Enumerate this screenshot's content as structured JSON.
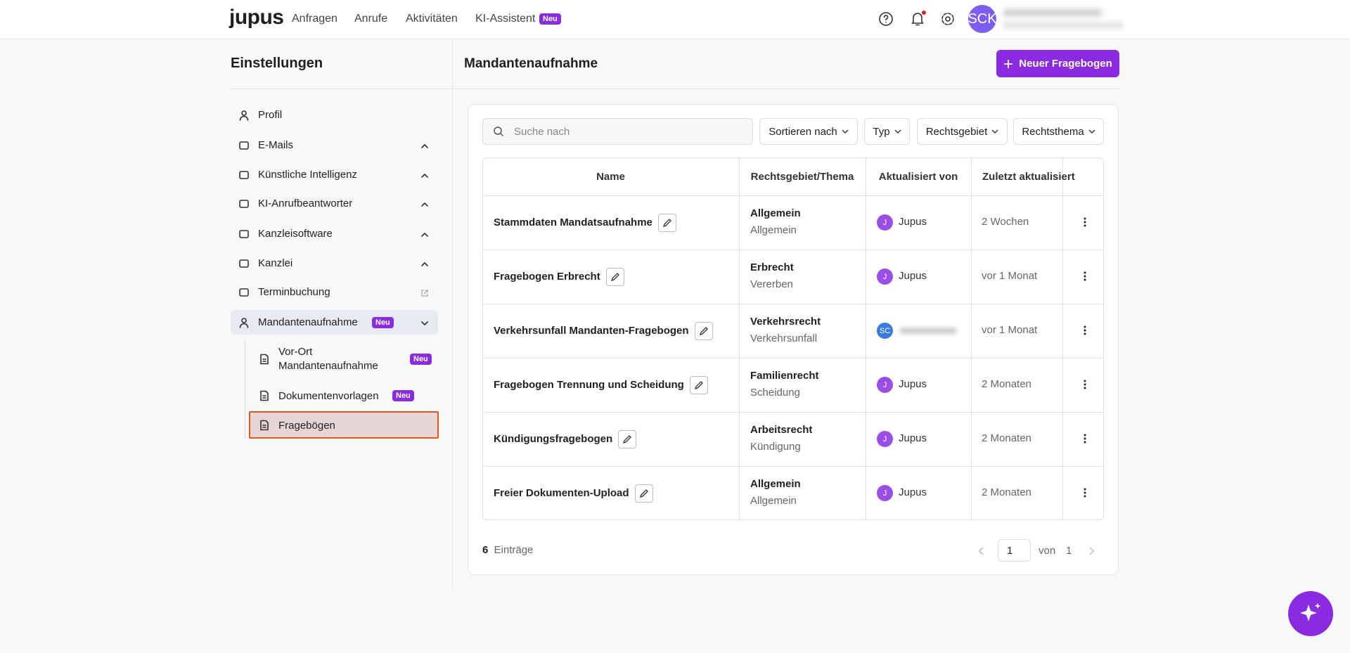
{
  "nav": {
    "logo": "jupus",
    "items": [
      "Anfragen",
      "Anrufe",
      "Aktivitäten",
      "KI-Assistent"
    ],
    "badge": "Neu",
    "avatar": "SCK"
  },
  "sidebar": {
    "title": "Einstellungen",
    "items": [
      {
        "label": "Profil"
      },
      {
        "label": "E-Mails"
      },
      {
        "label": "Künstliche Intelligenz"
      },
      {
        "label": "KI-Anrufbeantworter"
      },
      {
        "label": "Kanzleisoftware"
      },
      {
        "label": "Kanzlei"
      },
      {
        "label": "Terminbuchung"
      },
      {
        "label": "Mandantenaufnahme",
        "badge": "Neu"
      }
    ],
    "sub_items": [
      {
        "label": "Vor-Ort Mandantenaufnahme",
        "badge": "Neu"
      },
      {
        "label": "Dokumentenvorlagen",
        "badge": "Neu"
      },
      {
        "label": "Fragebögen"
      }
    ]
  },
  "main": {
    "title": "Mandantenaufnahme",
    "button": "Neuer Fragebogen",
    "search_placeholder": "Suche nach",
    "filters": [
      "Sortieren nach",
      "Typ",
      "Rechtsgebiet",
      "Rechtsthema"
    ],
    "table": {
      "columns": [
        "Name",
        "Rechtsgebiet/Thema",
        "Aktualisiert von",
        "Zuletzt aktualisiert"
      ],
      "rows": [
        {
          "name": "Stammdaten Mandatsaufnahme",
          "area": "Allgemein",
          "topic": "Allgemein",
          "avatar": "J",
          "user": "Jupus",
          "updated": "2 Wochen"
        },
        {
          "name": "Fragebogen Erbrecht",
          "area": "Erbrecht",
          "topic": "Vererben",
          "avatar": "J",
          "user": "Jupus",
          "updated": "vor 1 Monat"
        },
        {
          "name": "Verkehrsunfall Mandanten-Fragebogen",
          "area": "Verkehrsrecht",
          "topic": "Verkehrsunfall",
          "avatar": "SC",
          "updated": "vor 1 Monat"
        },
        {
          "name": "Fragebogen Trennung und Scheidung",
          "area": "Familienrecht",
          "topic": "Scheidung",
          "avatar": "J",
          "user": "Jupus",
          "updated": "2 Monaten"
        },
        {
          "name": "Kündigungsfragebogen",
          "area": "Arbeitsrecht",
          "topic": "Kündigung",
          "avatar": "J",
          "user": "Jupus",
          "updated": "2 Monaten"
        },
        {
          "name": "Freier Dokumenten-Upload",
          "area": "Allgemein",
          "topic": "Allgemein",
          "avatar": "J",
          "user": "Jupus",
          "updated": "2 Monaten"
        }
      ]
    },
    "footer": {
      "count": 6,
      "count_label": "Einträge",
      "page": 1,
      "of": "von",
      "total": 1
    }
  }
}
